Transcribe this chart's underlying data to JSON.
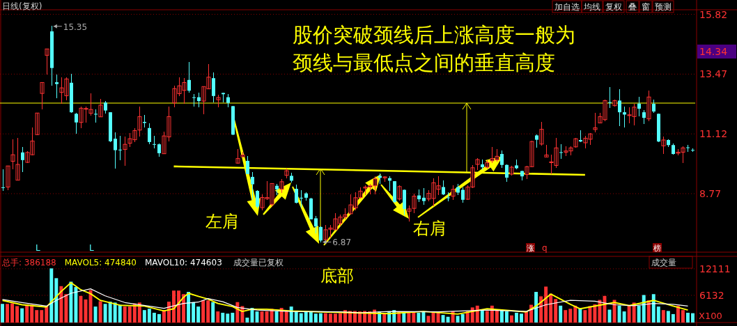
{
  "chart_data": [
    {
      "type": "candlestick",
      "title": "日线(复权)",
      "grid": "y",
      "ylim": [
        6.47,
        16.0
      ],
      "yticks": [
        8.77,
        11.12,
        13.47,
        15.82
      ],
      "categories": [
        null,
        null,
        null,
        null,
        null,
        null,
        null,
        null,
        null,
        null,
        null,
        null,
        null,
        null,
        null,
        null,
        null,
        null,
        null,
        null,
        null,
        null,
        null,
        null,
        null,
        null,
        null,
        null,
        null,
        null,
        null,
        null,
        null,
        null,
        null,
        null,
        null,
        null,
        null,
        null,
        null,
        null,
        null,
        null,
        null,
        null,
        null,
        null,
        null,
        null,
        null,
        null,
        null,
        null,
        null,
        null,
        null,
        null,
        null,
        null,
        null,
        null,
        null,
        null,
        null,
        null,
        null,
        null,
        null,
        null,
        null,
        null,
        null,
        null,
        null,
        null,
        null,
        null,
        null,
        null,
        null,
        null,
        null,
        null,
        null,
        null,
        null,
        null,
        null,
        null,
        null,
        null,
        null,
        null,
        null,
        null,
        null,
        null,
        null,
        null,
        null,
        null,
        null,
        null,
        null,
        null,
        null,
        null,
        null,
        null,
        null,
        null,
        null,
        null,
        null,
        null,
        null,
        null,
        null,
        null,
        null,
        null,
        null,
        null,
        null,
        null,
        null,
        null,
        null,
        null,
        null,
        null,
        null,
        null,
        null,
        null,
        null,
        null,
        null,
        null,
        null,
        null
      ],
      "ohlc": [
        [
          9.02,
          9.72,
          8.9,
          9.0
        ],
        [
          9.03,
          9.86,
          8.92,
          9.86
        ],
        [
          10.04,
          10.88,
          9.74,
          10.3
        ],
        [
          9.3,
          10.95,
          9.3,
          9.92
        ],
        [
          10.39,
          10.58,
          9.63,
          10.09
        ],
        [
          10.0,
          10.43,
          10.0,
          10.39
        ],
        [
          10.3,
          11.37,
          10.3,
          10.84
        ],
        [
          11.09,
          11.94,
          11.09,
          11.94
        ],
        [
          12.71,
          13.14,
          12.09,
          13.14
        ],
        [
          14.21,
          14.46,
          13.46,
          14.46
        ],
        [
          15.15,
          15.35,
          13.03,
          13.71
        ],
        [
          13.15,
          13.45,
          12.53,
          13.08
        ],
        [
          12.75,
          13.32,
          12.32,
          12.93
        ],
        [
          12.62,
          13.34,
          12.46,
          13.28
        ],
        [
          13.13,
          13.48,
          11.96,
          11.97
        ],
        [
          11.91,
          11.93,
          11.14,
          11.57
        ],
        [
          11.57,
          12.17,
          11.36,
          12.13
        ],
        [
          12.09,
          12.17,
          11.57,
          12.12
        ],
        [
          11.93,
          12.69,
          11.85,
          12.08
        ],
        [
          11.91,
          12.08,
          11.59,
          11.88
        ],
        [
          11.79,
          12.48,
          11.79,
          12.25
        ],
        [
          12.35,
          12.4,
          11.93,
          12.04
        ],
        [
          11.97,
          11.97,
          10.81,
          10.83
        ],
        [
          10.93,
          11.18,
          9.77,
          10.48
        ],
        [
          10.5,
          11.02,
          10.11,
          10.48
        ],
        [
          10.51,
          11.0,
          9.87,
          10.71
        ],
        [
          10.75,
          11.15,
          10.63,
          10.93
        ],
        [
          10.89,
          11.34,
          10.82,
          11.25
        ],
        [
          11.27,
          12.17,
          11.02,
          11.8
        ],
        [
          11.59,
          11.86,
          11.38,
          11.55
        ],
        [
          11.35,
          11.52,
          10.74,
          10.8
        ],
        [
          10.72,
          11.04,
          10.56,
          10.7
        ],
        [
          10.71,
          10.74,
          10.23,
          10.36
        ],
        [
          10.34,
          11.2,
          10.34,
          11.04
        ],
        [
          11.0,
          12.17,
          10.84,
          11.8
        ],
        [
          12.34,
          13.01,
          12.17,
          12.9
        ],
        [
          12.7,
          13.34,
          12.61,
          13.01
        ],
        [
          12.83,
          13.3,
          12.32,
          13.14
        ],
        [
          13.24,
          13.94,
          12.75,
          12.82
        ],
        [
          12.56,
          12.66,
          12.21,
          12.55
        ],
        [
          12.56,
          12.72,
          12.17,
          12.41
        ],
        [
          12.41,
          12.98,
          11.91,
          12.98
        ],
        [
          12.89,
          13.86,
          12.89,
          13.35
        ],
        [
          13.31,
          13.51,
          12.37,
          12.61
        ],
        [
          12.46,
          12.64,
          12.19,
          12.55
        ],
        [
          12.73,
          12.73,
          12.37,
          12.68
        ],
        [
          12.56,
          12.66,
          12.19,
          12.34
        ],
        [
          12.21,
          12.21,
          11.09,
          11.09
        ],
        [
          9.97,
          10.5,
          9.97,
          10.15
        ],
        [
          10.22,
          10.4,
          10.22,
          10.29
        ],
        [
          10.06,
          10.24,
          9.54,
          9.54
        ],
        [
          9.43,
          9.61,
          8.53,
          9.14
        ],
        [
          8.88,
          8.9,
          8.2,
          8.26
        ],
        [
          8.22,
          8.72,
          8.12,
          8.62
        ],
        [
          8.57,
          9.24,
          8.53,
          8.62
        ],
        [
          8.35,
          9.17,
          8.26,
          9.17
        ],
        [
          9.08,
          9.14,
          8.72,
          8.94
        ],
        [
          8.94,
          9.34,
          8.81,
          9.24
        ],
        [
          9.49,
          9.74,
          9.4,
          9.67
        ],
        [
          9.47,
          9.58,
          9.22,
          9.28
        ],
        [
          8.96,
          9.1,
          8.41,
          8.41
        ],
        [
          8.61,
          8.88,
          8.23,
          8.58
        ],
        [
          8.78,
          8.81,
          8.51,
          8.61
        ],
        [
          8.58,
          8.58,
          7.76,
          7.76
        ],
        [
          7.8,
          7.89,
          7.21,
          7.48
        ],
        [
          7.46,
          7.46,
          6.87,
          6.93
        ],
        [
          6.96,
          7.53,
          6.93,
          7.35
        ],
        [
          7.37,
          7.53,
          7.07,
          7.42
        ],
        [
          7.35,
          8.0,
          7.35,
          7.78
        ],
        [
          7.6,
          7.94,
          7.53,
          7.85
        ],
        [
          7.85,
          8.17,
          7.76,
          7.94
        ],
        [
          7.98,
          8.72,
          7.98,
          8.33
        ],
        [
          8.21,
          8.81,
          8.12,
          8.61
        ],
        [
          8.62,
          9.01,
          8.58,
          8.87
        ],
        [
          8.99,
          9.08,
          8.72,
          9.03
        ],
        [
          9.03,
          9.13,
          8.76,
          9.08
        ],
        [
          9.08,
          9.45,
          8.76,
          9.35
        ],
        [
          9.47,
          9.56,
          9.17,
          9.39
        ],
        [
          9.39,
          9.45,
          9.25,
          9.43
        ],
        [
          9.38,
          9.45,
          8.9,
          9.28
        ],
        [
          9.26,
          9.26,
          8.44,
          8.44
        ],
        [
          8.56,
          9.08,
          8.51,
          9.05
        ],
        [
          8.92,
          8.92,
          7.94,
          8.17
        ],
        [
          8.08,
          8.28,
          7.69,
          8.17
        ],
        [
          8.19,
          8.76,
          8.01,
          8.67
        ],
        [
          8.7,
          8.92,
          8.46,
          8.55
        ],
        [
          8.61,
          8.97,
          8.35,
          8.48
        ],
        [
          8.56,
          8.9,
          8.47,
          8.78
        ],
        [
          8.58,
          9.37,
          8.28,
          9.2
        ],
        [
          8.94,
          9.45,
          8.73,
          9.08
        ],
        [
          9.03,
          9.29,
          8.72,
          8.74
        ],
        [
          8.62,
          8.81,
          8.49,
          8.6
        ],
        [
          8.67,
          9.08,
          8.53,
          8.94
        ],
        [
          9.03,
          9.13,
          8.72,
          8.81
        ],
        [
          8.92,
          9.01,
          8.44,
          8.53
        ],
        [
          8.55,
          9.08,
          8.55,
          9.03
        ],
        [
          9.03,
          9.88,
          8.99,
          9.79
        ],
        [
          9.92,
          10.16,
          9.72,
          10.11
        ],
        [
          9.92,
          10.1,
          9.72,
          9.81
        ],
        [
          9.81,
          10.08,
          9.77,
          9.99
        ],
        [
          10.06,
          10.6,
          9.99,
          10.15
        ],
        [
          10.1,
          10.5,
          10.04,
          10.24
        ],
        [
          10.33,
          10.45,
          9.81,
          9.9
        ],
        [
          9.9,
          9.9,
          9.26,
          9.4
        ],
        [
          9.54,
          9.86,
          9.49,
          9.81
        ],
        [
          9.88,
          10.1,
          9.74,
          9.77
        ],
        [
          9.66,
          9.67,
          9.31,
          9.45
        ],
        [
          9.52,
          9.86,
          9.37,
          9.83
        ],
        [
          9.83,
          10.84,
          9.83,
          10.82
        ],
        [
          11.06,
          11.09,
          10.59,
          10.89
        ],
        [
          10.72,
          11.59,
          10.68,
          11.3
        ],
        [
          10.21,
          10.68,
          10.21,
          10.29
        ],
        [
          9.99,
          10.29,
          9.54,
          10.02
        ],
        [
          9.88,
          10.95,
          9.81,
          10.57
        ],
        [
          10.4,
          10.7,
          10.15,
          10.38
        ],
        [
          10.4,
          10.61,
          10.25,
          10.45
        ],
        [
          10.45,
          10.61,
          10.29,
          10.57
        ],
        [
          10.61,
          10.94,
          10.59,
          10.93
        ],
        [
          10.88,
          11.25,
          10.8,
          10.82
        ],
        [
          10.77,
          11.04,
          10.56,
          10.95
        ],
        [
          10.91,
          11.15,
          10.71,
          11.12
        ],
        [
          11.29,
          11.94,
          11.2,
          11.36
        ],
        [
          11.55,
          11.94,
          11.55,
          11.8
        ],
        [
          11.68,
          12.46,
          11.62,
          12.43
        ],
        [
          12.37,
          12.96,
          12.14,
          12.34
        ],
        [
          12.23,
          12.46,
          12.2,
          12.43
        ],
        [
          12.43,
          12.86,
          11.44,
          11.97
        ],
        [
          11.97,
          12.17,
          11.38,
          11.88
        ],
        [
          11.84,
          12.14,
          11.55,
          11.87
        ],
        [
          11.8,
          12.28,
          11.48,
          12.17
        ],
        [
          12.31,
          12.55,
          11.82,
          12.11
        ],
        [
          11.97,
          12.05,
          11.53,
          11.75
        ],
        [
          11.71,
          12.8,
          11.62,
          12.57
        ],
        [
          12.3,
          12.46,
          11.96,
          12.0
        ],
        [
          11.91,
          11.91,
          10.82,
          10.82
        ],
        [
          10.65,
          11.0,
          10.34,
          10.88
        ],
        [
          10.88,
          10.88,
          10.61,
          10.68
        ],
        [
          10.68,
          10.74,
          10.31,
          10.33
        ],
        [
          10.36,
          10.52,
          10.29,
          10.4
        ],
        [
          10.4,
          10.61,
          9.99,
          10.57
        ],
        [
          10.59,
          10.68,
          10.43,
          10.57
        ],
        [
          10.49,
          10.54,
          10.43,
          10.48
        ]
      ],
      "series": [
        {
          "type": "line",
          "color": "#ffff00",
          "values": [
            null,
            null,
            null,
            null,
            null,
            null,
            null,
            null,
            null,
            null,
            null,
            null,
            null,
            null,
            null,
            null,
            null,
            null,
            null,
            null,
            null,
            null,
            null,
            null,
            null,
            null,
            null,
            null,
            null,
            null,
            null,
            null,
            null,
            null,
            null,
            9.84,
            null,
            null,
            null,
            null,
            null,
            null,
            null,
            null,
            null,
            null,
            null,
            null,
            null,
            null,
            null,
            null,
            null,
            null,
            null,
            null,
            null,
            null,
            null,
            null,
            null,
            null,
            null,
            null,
            null,
            null,
            null,
            null,
            null,
            null,
            null,
            null,
            null,
            null,
            null,
            null,
            null,
            null,
            null,
            null,
            null,
            null,
            null,
            null,
            null,
            null,
            null,
            null,
            null,
            null,
            null,
            null,
            null,
            null,
            null,
            null,
            null,
            null,
            null,
            null,
            null,
            null,
            null,
            null,
            null,
            null,
            null,
            null,
            null,
            null,
            null,
            null,
            null,
            null,
            null,
            null,
            null,
            null,
            null,
            9.51,
            null,
            null,
            null,
            null,
            null,
            null,
            null,
            null,
            null,
            null,
            null,
            null,
            null,
            null,
            null,
            null,
            null,
            null,
            null,
            null,
            null,
            null
          ]
        }
      ],
      "ref_lines": [
        {
          "axis": "y",
          "value": 12.33,
          "color": "#ffff00"
        }
      ],
      "annotations": [
        "股价突破颈线后上涨高度一般为颈线与最低点之间的垂直高度",
        "左肩",
        "右肩",
        "底部",
        "15.35",
        "6.87",
        "14.34",
        "加自选",
        "均线",
        "复权",
        "叠",
        "窗",
        "预测",
        "L",
        "L",
        "涨",
        "q",
        "榜"
      ]
    },
    {
      "type": "bar",
      "grid": "y",
      "legend": "top left",
      "ylim": [
        0,
        14920
      ],
      "yticks": [
        6132,
        12111
      ],
      "categories": [
        null,
        null,
        null,
        null,
        null,
        null,
        null,
        null,
        null,
        null,
        null,
        null,
        null,
        null,
        null,
        null,
        null,
        null,
        null,
        null,
        null,
        null,
        null,
        null,
        null,
        null,
        null,
        null,
        null,
        null,
        null,
        null,
        null,
        null,
        null,
        null,
        null,
        null,
        null,
        null,
        null,
        null,
        null,
        null,
        null,
        null,
        null,
        null,
        null,
        null,
        null,
        null,
        null,
        null,
        null,
        null,
        null,
        null,
        null,
        null,
        null,
        null,
        null,
        null,
        null,
        null,
        null,
        null,
        null,
        null,
        null,
        null,
        null,
        null,
        null,
        null,
        null,
        null,
        null,
        null,
        null,
        null,
        null,
        null,
        null,
        null,
        null,
        null,
        null,
        null,
        null,
        null,
        null,
        null,
        null,
        null,
        null,
        null,
        null,
        null,
        null,
        null,
        null,
        null,
        null,
        null,
        null,
        null,
        null,
        null,
        null,
        null,
        null,
        null,
        null,
        null,
        null,
        null,
        null,
        null,
        null,
        null,
        null,
        null,
        null,
        null,
        null,
        null,
        null,
        null,
        null,
        null,
        null,
        null,
        null,
        null,
        null,
        null,
        null,
        null,
        null,
        null
      ],
      "series": [
        {
          "name": "总手: 386188",
          "color": "#ff3232",
          "values": [
            4200,
            4200,
            4300,
            3700,
            3200,
            4100,
            4000,
            2800,
            2800,
            3700,
            12200,
            10000,
            8200,
            6400,
            9200,
            8000,
            6000,
            5200,
            7300,
            3600,
            4800,
            4200,
            4700,
            4500,
            4000,
            3600,
            3600,
            4300,
            4500,
            2800,
            3100,
            2200,
            1900,
            2800,
            4700,
            7200,
            7200,
            6400,
            6900,
            4600,
            3600,
            5000,
            5000,
            4600,
            2500,
            2200,
            2000,
            2200,
            4600,
            3700,
            1100,
            3300,
            2500,
            2500,
            2500,
            3100,
            2500,
            3300,
            2500,
            3600,
            2500,
            2100,
            2400,
            2400,
            2000,
            2100,
            2100,
            2000,
            2000,
            2100,
            2800,
            2600,
            2600,
            2500,
            2600,
            2500,
            2900,
            2500,
            2000,
            2400,
            2800,
            2400,
            2500,
            2500,
            2500,
            2200,
            2400,
            1500,
            2200,
            2200,
            1700,
            1300,
            2500,
            1500,
            1900,
            2500,
            3400,
            3800,
            2800,
            2600,
            3800,
            2900,
            2800,
            2500,
            1600,
            2200,
            2000,
            2500,
            4000,
            6900,
            5900,
            8100,
            6500,
            5300,
            3800,
            2800,
            3100,
            3800,
            3300,
            2800,
            3700,
            4100,
            5100,
            6000,
            2900,
            5100,
            3800,
            2500,
            3800,
            4500,
            3800,
            6200,
            5000,
            6400,
            3600,
            2800,
            2600,
            1900,
            3800,
            2800,
            2200,
            2100
          ],
          "colors": [
            "#54ffff",
            "#ff3232",
            "#ff3232",
            "#ff3232",
            "#54ffff",
            "#ff3232",
            "#ff3232",
            "#ff3232",
            "#ff3232",
            "#ff3232",
            "#54ffff",
            "#54ffff",
            "#ff3232",
            "#ff3232",
            "#54ffff",
            "#54ffff",
            "#ff3232",
            "#ff3232",
            "#ff3232",
            "#54ffff",
            "#ff3232",
            "#54ffff",
            "#54ffff",
            "#54ffff",
            "#54ffff",
            "#ff3232",
            "#ff3232",
            "#ff3232",
            "#ff3232",
            "#54ffff",
            "#54ffff",
            "#54ffff",
            "#54ffff",
            "#ff3232",
            "#ff3232",
            "#ff3232",
            "#ff3232",
            "#ff3232",
            "#54ffff",
            "#54ffff",
            "#54ffff",
            "#ff3232",
            "#ff3232",
            "#54ffff",
            "#ff3232",
            "#54ffff",
            "#54ffff",
            "#54ffff",
            "#ff3232",
            "#ff3232",
            "#54ffff",
            "#54ffff",
            "#54ffff",
            "#ff3232",
            "#ff3232",
            "#ff3232",
            "#54ffff",
            "#ff3232",
            "#ff3232",
            "#54ffff",
            "#54ffff",
            "#54ffff",
            "#54ffff",
            "#54ffff",
            "#54ffff",
            "#54ffff",
            "#ff3232",
            "#ff3232",
            "#ff3232",
            "#ff3232",
            "#ff3232",
            "#ff3232",
            "#ff3232",
            "#ff3232",
            "#ff3232",
            "#ff3232",
            "#ff3232",
            "#54ffff",
            "#ff3232",
            "#54ffff",
            "#54ffff",
            "#ff3232",
            "#54ffff",
            "#ff3232",
            "#ff3232",
            "#54ffff",
            "#54ffff",
            "#ff3232",
            "#ff3232",
            "#ff3232",
            "#54ffff",
            "#54ffff",
            "#ff3232",
            "#54ffff",
            "#54ffff",
            "#ff3232",
            "#ff3232",
            "#ff3232",
            "#54ffff",
            "#ff3232",
            "#ff3232",
            "#ff3232",
            "#54ffff",
            "#54ffff",
            "#ff3232",
            "#54ffff",
            "#54ffff",
            "#ff3232",
            "#ff3232",
            "#54ffff",
            "#ff3232",
            "#ff3232",
            "#ff3232",
            "#ff3232",
            "#54ffff",
            "#ff3232",
            "#ff3232",
            "#ff3232",
            "#54ffff",
            "#ff3232",
            "#ff3232",
            "#ff3232",
            "#ff3232",
            "#ff3232",
            "#54ffff",
            "#ff3232",
            "#54ffff",
            "#54ffff",
            "#ff3232",
            "#ff3232",
            "#54ffff",
            "#54ffff",
            "#ff3232",
            "#54ffff",
            "#54ffff",
            "#ff3232",
            "#54ffff",
            "#54ffff",
            "#ff3232",
            "#ff3232",
            "#54ffff",
            "#54ffff"
          ]
        },
        {
          "name": "MAVOL5: 474840",
          "type": "line",
          "color": "#ffff00",
          "values": [
            5000,
            null,
            null,
            null,
            4000,
            null,
            null,
            null,
            null,
            3500,
            null,
            null,
            7000,
            null,
            9000,
            null,
            7400,
            null,
            6500,
            null,
            5000,
            null,
            null,
            null,
            3900,
            null,
            null,
            null,
            null,
            3700,
            null,
            null,
            null,
            2600,
            null,
            3100,
            null,
            5700,
            6600,
            null,
            5900,
            null,
            5300,
            null,
            4300,
            null,
            null,
            3600,
            null,
            2500,
            null,
            3000,
            null,
            null,
            3000,
            null,
            null,
            null,
            null,
            2600,
            null,
            null,
            null,
            null,
            null,
            2400,
            null,
            null,
            null,
            null,
            null,
            null,
            null,
            null,
            null,
            null,
            null,
            null,
            null,
            2000,
            null,
            null,
            null,
            null,
            null,
            null,
            2500,
            null,
            null,
            null,
            null,
            null,
            null,
            1900,
            null,
            null,
            null,
            null,
            null,
            3100,
            null,
            null,
            null,
            null,
            null,
            null,
            null,
            2400,
            null,
            3700,
            null,
            null,
            6400,
            null,
            null,
            null,
            4100,
            null,
            3100,
            null,
            null,
            null,
            null,
            null,
            null,
            4500,
            null,
            null,
            3800,
            null,
            null,
            null,
            null,
            5000,
            null,
            null,
            null,
            3700,
            null,
            null,
            2800,
            null
          ]
        },
        {
          "name": "MAVOL10: 474603",
          "type": "line",
          "color": "#ffffff",
          "values": [
            5200,
            null,
            null,
            null,
            4500,
            null,
            null,
            null,
            null,
            3700,
            null,
            5000,
            null,
            null,
            6600,
            null,
            null,
            null,
            7600,
            null,
            null,
            6000,
            null,
            null,
            null,
            4500,
            null,
            null,
            null,
            null,
            null,
            null,
            null,
            3200,
            null,
            null,
            null,
            4300,
            null,
            null,
            4600,
            null,
            5400,
            null,
            null,
            4700,
            null,
            null,
            3400,
            null,
            null,
            null,
            2800,
            null,
            null,
            null,
            null,
            null,
            null,
            2500,
            null,
            null,
            null,
            null,
            null,
            null,
            null,
            null,
            null,
            2400,
            null,
            null,
            null,
            2200,
            null,
            null,
            null,
            null,
            null,
            2500,
            null,
            null,
            null,
            null,
            null,
            null,
            null,
            null,
            null,
            2400,
            null,
            null,
            null,
            null,
            null,
            null,
            null,
            null,
            null,
            2800,
            null,
            null,
            null,
            null,
            null,
            null,
            null,
            2500,
            null,
            null,
            null,
            4000,
            null,
            null,
            null,
            null,
            5000,
            null,
            null,
            null,
            null,
            4800,
            null,
            null,
            null,
            4000,
            null,
            null,
            null,
            3800,
            null,
            null,
            null,
            4300,
            null,
            null,
            null,
            4100,
            null,
            null,
            3700,
            null
          ]
        }
      ],
      "annotations": [
        "成交量已复权",
        "成交量",
        "X100"
      ]
    }
  ]
}
